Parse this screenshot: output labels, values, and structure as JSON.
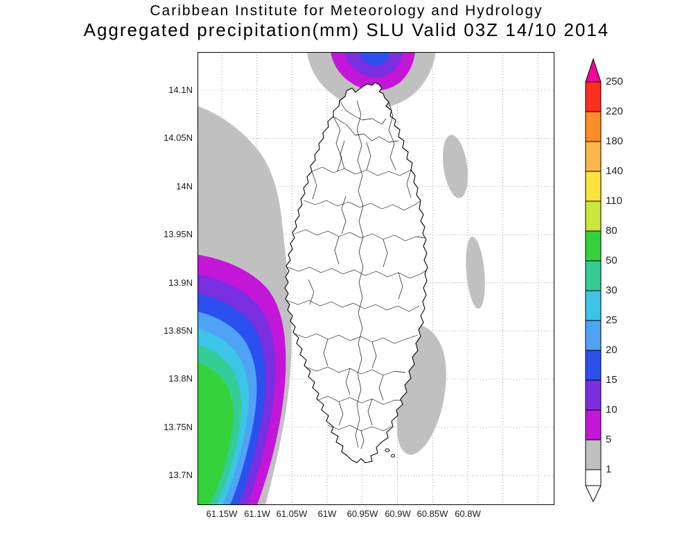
{
  "title": {
    "line1": "Caribbean Institute for Meteorology and Hydrology",
    "line2": "Aggregated precipitation(mm) SLU Valid 03Z 14/10 2014"
  },
  "map": {
    "lat_labels": [
      "14.1N",
      "14.05N",
      "14N",
      "13.95N",
      "13.9N",
      "13.85N",
      "13.8N",
      "13.75N",
      "13.7N"
    ],
    "lon_labels": [
      "61.15W",
      "61.1W",
      "61.05W",
      "61W",
      "60.95W",
      "60.9W",
      "60.85W",
      "60.8W"
    ]
  },
  "colorbar": {
    "labels": [
      "250",
      "220",
      "180",
      "140",
      "110",
      "80",
      "50",
      "30",
      "25",
      "20",
      "15",
      "10",
      "5",
      "1"
    ],
    "colors": [
      "#f1059b",
      "#fb2e1f",
      "#fd8d26",
      "#fdb74b",
      "#fbe23c",
      "#c8e73a",
      "#35d13a",
      "#33cd96",
      "#3cc5e6",
      "#4ea3f5",
      "#2b50ef",
      "#7a2fe0",
      "#c316d8",
      "#c0c0c0",
      "#ffffff"
    ],
    "level_colors": {
      "1": "#c0c0c0",
      "5": "#c316d8",
      "10": "#7a2fe0",
      "15": "#2b50ef",
      "20": "#4ea3f5",
      "25": "#3cc5e6",
      "30": "#33cd96",
      "50": "#35d13a"
    }
  }
}
